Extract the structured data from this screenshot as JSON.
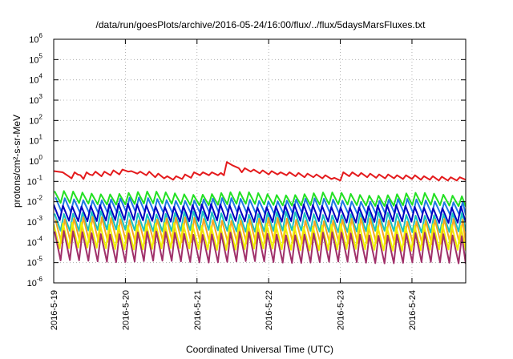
{
  "chart_data": {
    "type": "line",
    "title": "/data/run/goesPlots/archive/2016-05-24/16:00/flux/../flux/5daysMarsFluxes.txt",
    "xlabel": "Coordinated Universal Time (UTC)",
    "ylabel": "protons/cm²-s-sr-MeV",
    "y_scale": "log",
    "ylim": [
      1e-06,
      1000000.0
    ],
    "y_ticks": [
      {
        "value": -6,
        "base": "10",
        "exp": "-6"
      },
      {
        "value": -5,
        "base": "10",
        "exp": "-5"
      },
      {
        "value": -4,
        "base": "10",
        "exp": "-4"
      },
      {
        "value": -3,
        "base": "10",
        "exp": "-3"
      },
      {
        "value": -2,
        "base": "10",
        "exp": "-2"
      },
      {
        "value": -1,
        "base": "10",
        "exp": "-1"
      },
      {
        "value": 0,
        "base": "10",
        "exp": "0"
      },
      {
        "value": 1,
        "base": "10",
        "exp": "1"
      },
      {
        "value": 2,
        "base": "10",
        "exp": "2"
      },
      {
        "value": 3,
        "base": "10",
        "exp": "3"
      },
      {
        "value": 4,
        "base": "10",
        "exp": "4"
      },
      {
        "value": 5,
        "base": "10",
        "exp": "5"
      },
      {
        "value": 6,
        "base": "10",
        "exp": "6"
      }
    ],
    "xlim": [
      "2016-05-19 00:00",
      "2016-05-24 18:00"
    ],
    "x_ticks": [
      "2016-5-19",
      "2016-5-20",
      "2016-5-21",
      "2016-5-22",
      "2016-5-23",
      "2016-5-24"
    ],
    "grid": true,
    "series": [
      {
        "color": "#e41a1c",
        "values": [
          [
            "2016-05-19 00:00",
            0.32
          ],
          [
            "2016-05-19 03:00",
            0.28
          ],
          [
            "2016-05-19 05:00",
            0.18
          ],
          [
            "2016-05-19 06:00",
            0.14
          ],
          [
            "2016-05-19 07:00",
            0.28
          ],
          [
            "2016-05-19 08:00",
            0.22
          ],
          [
            "2016-05-19 09:00",
            0.2
          ],
          [
            "2016-05-19 10:00",
            0.13
          ],
          [
            "2016-05-19 11:00",
            0.28
          ],
          [
            "2016-05-19 12:00",
            0.22
          ],
          [
            "2016-05-19 13:00",
            0.2
          ],
          [
            "2016-05-19 14:00",
            0.3
          ],
          [
            "2016-05-19 16:00",
            0.18
          ],
          [
            "2016-05-19 17:00",
            0.3
          ],
          [
            "2016-05-19 19:00",
            0.2
          ],
          [
            "2016-05-19 20:00",
            0.35
          ],
          [
            "2016-05-19 22:00",
            0.22
          ],
          [
            "2016-05-19 23:00",
            0.38
          ],
          [
            "2016-05-20 01:00",
            0.3
          ],
          [
            "2016-05-20 02:00",
            0.32
          ],
          [
            "2016-05-20 04:00",
            0.24
          ],
          [
            "2016-05-20 05:00",
            0.3
          ],
          [
            "2016-05-20 07:00",
            0.2
          ],
          [
            "2016-05-20 08:00",
            0.3
          ],
          [
            "2016-05-20 10:00",
            0.16
          ],
          [
            "2016-05-20 11:00",
            0.24
          ],
          [
            "2016-05-20 13:00",
            0.14
          ],
          [
            "2016-05-20 14:00",
            0.18
          ],
          [
            "2016-05-20 16:00",
            0.12
          ],
          [
            "2016-05-20 17:00",
            0.18
          ],
          [
            "2016-05-20 19:00",
            0.13
          ],
          [
            "2016-05-20 20:00",
            0.22
          ],
          [
            "2016-05-20 22:00",
            0.15
          ],
          [
            "2016-05-20 23:00",
            0.28
          ],
          [
            "2016-05-21 01:00",
            0.2
          ],
          [
            "2016-05-21 02:00",
            0.28
          ],
          [
            "2016-05-21 04:00",
            0.2
          ],
          [
            "2016-05-21 05:00",
            0.28
          ],
          [
            "2016-05-21 07:00",
            0.2
          ],
          [
            "2016-05-21 08:00",
            0.26
          ],
          [
            "2016-05-21 09:00",
            0.2
          ],
          [
            "2016-05-21 10:00",
            0.9
          ],
          [
            "2016-05-21 12:00",
            0.6
          ],
          [
            "2016-05-21 14:00",
            0.45
          ],
          [
            "2016-05-21 15:00",
            0.28
          ],
          [
            "2016-05-21 16:00",
            0.45
          ],
          [
            "2016-05-21 18:00",
            0.3
          ],
          [
            "2016-05-21 19:00",
            0.38
          ],
          [
            "2016-05-21 21:00",
            0.25
          ],
          [
            "2016-05-21 22:00",
            0.35
          ],
          [
            "2016-05-22 00:00",
            0.22
          ],
          [
            "2016-05-22 01:00",
            0.32
          ],
          [
            "2016-05-22 03:00",
            0.22
          ],
          [
            "2016-05-22 04:00",
            0.28
          ],
          [
            "2016-05-22 06:00",
            0.2
          ],
          [
            "2016-05-22 07:00",
            0.28
          ],
          [
            "2016-05-22 09:00",
            0.18
          ],
          [
            "2016-05-22 10:00",
            0.26
          ],
          [
            "2016-05-22 12:00",
            0.16
          ],
          [
            "2016-05-22 13:00",
            0.24
          ],
          [
            "2016-05-22 15:00",
            0.16
          ],
          [
            "2016-05-22 16:00",
            0.22
          ],
          [
            "2016-05-22 18:00",
            0.14
          ],
          [
            "2016-05-22 19:00",
            0.2
          ],
          [
            "2016-05-22 21:00",
            0.13
          ],
          [
            "2016-05-22 22:00",
            0.15
          ],
          [
            "2016-05-23 00:00",
            0.11
          ],
          [
            "2016-05-23 01:00",
            0.28
          ],
          [
            "2016-05-23 03:00",
            0.18
          ],
          [
            "2016-05-23 04:00",
            0.28
          ],
          [
            "2016-05-23 06:00",
            0.18
          ],
          [
            "2016-05-23 07:00",
            0.26
          ],
          [
            "2016-05-23 09:00",
            0.16
          ],
          [
            "2016-05-23 10:00",
            0.24
          ],
          [
            "2016-05-23 12:00",
            0.15
          ],
          [
            "2016-05-23 13:00",
            0.22
          ],
          [
            "2016-05-23 15:00",
            0.14
          ],
          [
            "2016-05-23 16:00",
            0.22
          ],
          [
            "2016-05-23 18:00",
            0.14
          ],
          [
            "2016-05-23 19:00",
            0.2
          ],
          [
            "2016-05-23 21:00",
            0.13
          ],
          [
            "2016-05-23 22:00",
            0.2
          ],
          [
            "2016-05-24 00:00",
            0.13
          ],
          [
            "2016-05-24 01:00",
            0.2
          ],
          [
            "2016-05-24 03:00",
            0.12
          ],
          [
            "2016-05-24 04:00",
            0.18
          ],
          [
            "2016-05-24 06:00",
            0.12
          ],
          [
            "2016-05-24 07:00",
            0.18
          ],
          [
            "2016-05-24 09:00",
            0.11
          ],
          [
            "2016-05-24 10:00",
            0.17
          ],
          [
            "2016-05-24 12:00",
            0.11
          ],
          [
            "2016-05-24 13:00",
            0.16
          ],
          [
            "2016-05-24 15:00",
            0.11
          ],
          [
            "2016-05-24 16:00",
            0.16
          ],
          [
            "2016-05-24 18:00",
            0.12
          ]
        ]
      },
      {
        "color": "#22e022",
        "peak": 0.028,
        "trough": 0.008,
        "period_hours": 3.1,
        "trend": -0.1
      },
      {
        "color": "#1f78e6",
        "peak": 0.014,
        "trough": 0.003,
        "period_hours": 3.1,
        "trend": -0.1
      },
      {
        "color": "#0000c0",
        "peak": 0.007,
        "trough": 0.0012,
        "period_hours": 3.1,
        "trend": -0.1
      },
      {
        "color": "#19c0c0",
        "peak": 0.003,
        "trough": 0.0004,
        "period_hours": 3.1,
        "trend": -0.1
      },
      {
        "color": "#f5a623",
        "peak": 0.0015,
        "trough": 0.0001,
        "period_hours": 3.1,
        "trend": -0.1
      },
      {
        "color": "#f0f000",
        "peak": 0.0008,
        "trough": 5e-05,
        "period_hours": 3.1,
        "trend": -0.1
      },
      {
        "color": "#a0306a",
        "peak": 0.0003,
        "trough": 1.2e-05,
        "period_hours": 3.1,
        "trend": -0.1
      }
    ]
  }
}
